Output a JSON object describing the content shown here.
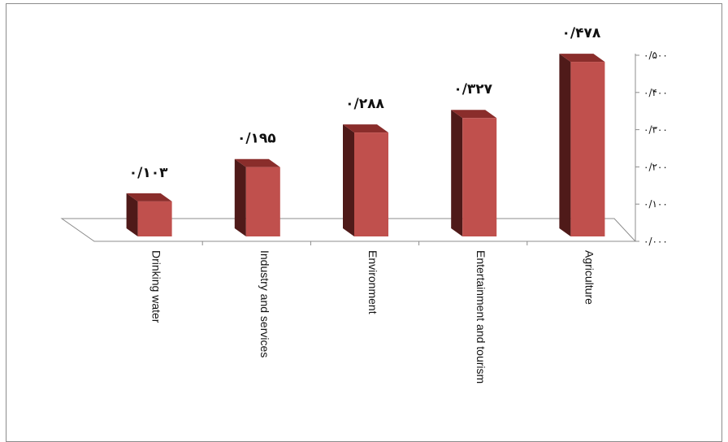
{
  "chart_data": {
    "type": "bar",
    "categories": [
      "Drinking water",
      "Industry and services",
      "Environment",
      "Entertainment and tourism",
      "Agriculture"
    ],
    "values": [
      0.103,
      0.195,
      0.288,
      0.327,
      0.478
    ],
    "value_labels": [
      "۰/۱۰۳",
      "۰/۱۹۵",
      "۰/۲۸۸",
      "۰/۳۲۷",
      "۰/۴۷۸"
    ],
    "yticks": [
      0,
      0.1,
      0.2,
      0.3,
      0.4,
      0.5
    ],
    "ytick_labels": [
      "۰/۰۰۰",
      "۰/۱۰۰",
      "۰/۲۰۰",
      "۰/۳۰۰",
      "۰/۴۰۰",
      "۰/۵۰۰"
    ],
    "ylim": [
      0,
      0.5
    ],
    "yaxis_side": "right",
    "style": "3d-column",
    "colors": {
      "front": "#c0504d",
      "side": "#4f1a19",
      "top": "#8a2d2b",
      "axis": "#8c8c8c"
    },
    "title": "",
    "xlabel": "",
    "ylabel": "",
    "grid": false
  }
}
